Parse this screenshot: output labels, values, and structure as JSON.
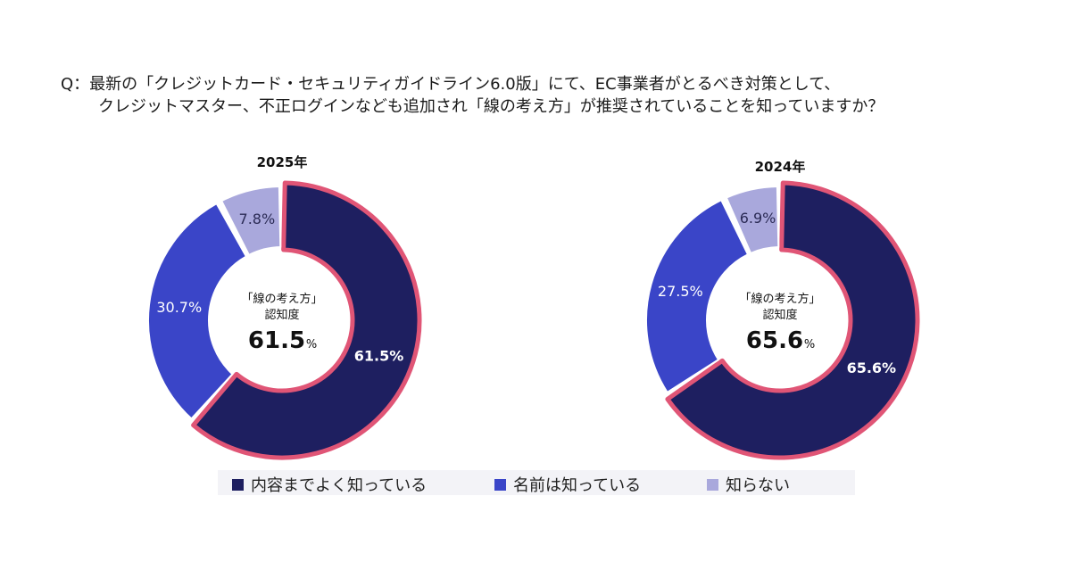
{
  "question": {
    "line1": "Q：最新の「クレジットカード・セキュリティガイドライン6.0版」にて、EC事業者がとるべき対策として、",
    "line2": "クレジットマスター、不正ログインなども追加され「線の考え方」が推奨されていることを知っていますか？"
  },
  "colors": {
    "know_contents": "#1e1f60",
    "know_name": "#3a45c8",
    "dont_know": "#a9a8dc",
    "highlight_border": "#e05576"
  },
  "chart_data": [
    {
      "type": "pie",
      "title": "2025年",
      "categories": [
        "内容までよく知っている",
        "名前は知っている",
        "知らない"
      ],
      "values": [
        61.5,
        30.7,
        7.8
      ],
      "value_labels": [
        "61.5%",
        "30.7%",
        "7.8%"
      ],
      "center": {
        "line1": "「線の考え方」",
        "line2": "認知度",
        "value": "61.5",
        "unit": "%"
      }
    },
    {
      "type": "pie",
      "title": "2024年",
      "categories": [
        "内容までよく知っている",
        "名前は知っている",
        "知らない"
      ],
      "values": [
        65.6,
        27.5,
        6.9
      ],
      "value_labels": [
        "65.6%",
        "27.5%",
        "6.9%"
      ],
      "center": {
        "line1": "「線の考え方」",
        "line2": "認知度",
        "value": "65.6",
        "unit": "%"
      }
    }
  ],
  "legend": [
    {
      "label": "内容までよく知っている",
      "color": "#1e1f60"
    },
    {
      "label": "名前は知っている",
      "color": "#3a45c8"
    },
    {
      "label": "知らない",
      "color": "#a9a8dc"
    }
  ]
}
